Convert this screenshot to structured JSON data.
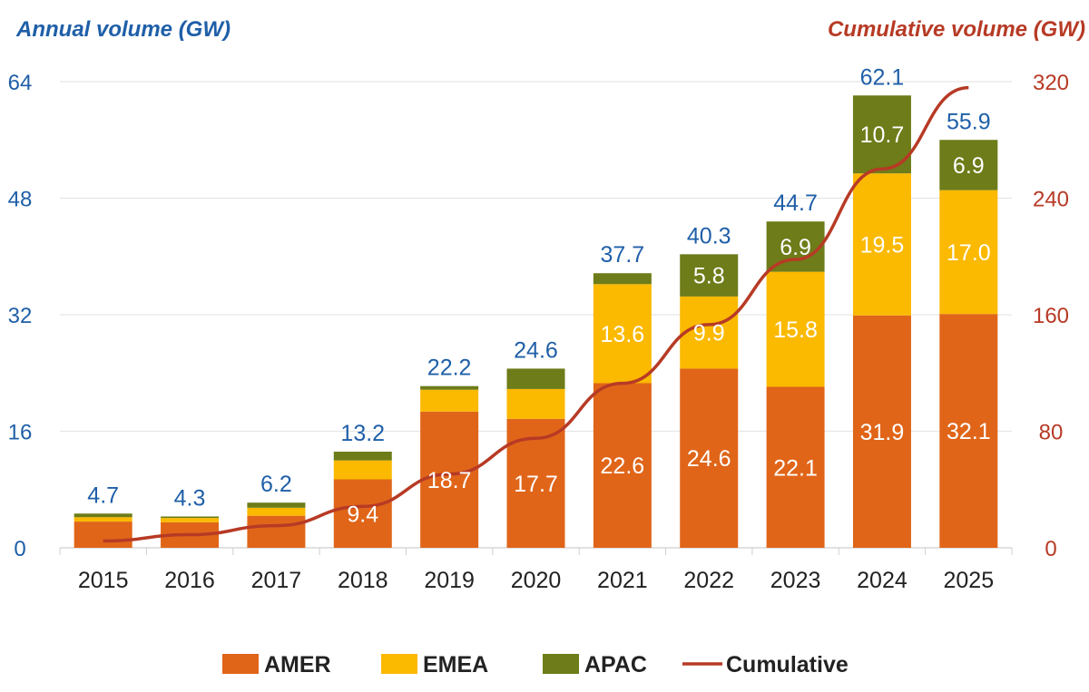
{
  "chart_data": {
    "type": "bar",
    "stacked": true,
    "categories": [
      "2015",
      "2016",
      "2017",
      "2018",
      "2019",
      "2020",
      "2021",
      "2022",
      "2023",
      "2024",
      "2025"
    ],
    "series": [
      {
        "name": "AMER",
        "color": "#E06519",
        "values": [
          3.6,
          3.5,
          4.4,
          9.4,
          18.7,
          17.7,
          22.6,
          24.6,
          22.1,
          31.9,
          32.1
        ]
      },
      {
        "name": "EMEA",
        "color": "#FBB900",
        "values": [
          0.6,
          0.6,
          1.1,
          2.6,
          3.0,
          4.1,
          13.6,
          9.9,
          15.8,
          19.5,
          17.0
        ]
      },
      {
        "name": "APAC",
        "color": "#6E7C19",
        "values": [
          0.5,
          0.2,
          0.7,
          1.2,
          0.5,
          2.8,
          1.5,
          5.8,
          6.9,
          10.7,
          6.9
        ]
      }
    ],
    "totals": [
      "4.7",
      "4.3",
      "6.2",
      "13.2",
      "22.2",
      "24.6",
      "37.7",
      "40.3",
      "44.7",
      "62.1",
      "55.9"
    ],
    "segment_labels": [
      [
        null,
        null,
        null,
        "9.4",
        "18.7",
        "17.7",
        "22.6",
        "24.6",
        "22.1",
        "31.9",
        "32.1"
      ],
      [
        null,
        null,
        null,
        null,
        null,
        null,
        "13.6",
        "9.9",
        "15.8",
        "19.5",
        "17.0"
      ],
      [
        null,
        null,
        null,
        null,
        null,
        null,
        null,
        "5.8",
        "6.9",
        "10.7",
        "6.9"
      ]
    ],
    "line_series": {
      "name": "Cumulative",
      "color": "#B73A25",
      "axis": "right",
      "values": [
        4.7,
        9.0,
        15.2,
        28.4,
        50.6,
        75.2,
        112.9,
        153.2,
        197.9,
        260.0,
        315.9
      ]
    },
    "ylabel": "Annual volume (GW)",
    "y2label": "Cumulative volume (GW)",
    "ylim": [
      0,
      64
    ],
    "y2lim": [
      0,
      320
    ],
    "yticks": [
      "0",
      "16",
      "32",
      "48",
      "64"
    ],
    "y2ticks": [
      "0",
      "80",
      "160",
      "240",
      "320"
    ],
    "grid": true,
    "legend": "bottom",
    "colors": {
      "left_axis": "#1F5FA8",
      "right_axis": "#B73A25",
      "total_label": "#1F5FA8"
    }
  }
}
